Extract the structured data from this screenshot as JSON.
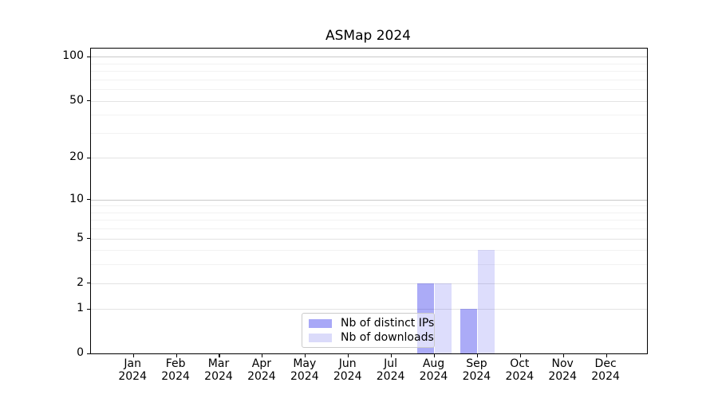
{
  "title": "ASMap 2024",
  "chart_data": {
    "type": "bar",
    "title": "ASMap 2024",
    "categories": [
      "Jan 2024",
      "Feb 2024",
      "Mar 2024",
      "Apr 2024",
      "May 2024",
      "Jun 2024",
      "Jul 2024",
      "Aug 2024",
      "Sep 2024",
      "Oct 2024",
      "Nov 2024",
      "Dec 2024"
    ],
    "series": [
      {
        "name": "Nb of distinct IPs",
        "color": "#a8a8f7",
        "fill": "rgba(13,13,232,0.345)",
        "values": [
          0,
          0,
          0,
          0,
          0,
          0,
          0,
          2,
          1,
          0,
          0,
          0
        ]
      },
      {
        "name": "Nb of downloads",
        "color": "#dbdbfa",
        "fill": "rgba(13,13,232,0.142)",
        "values": [
          0,
          0,
          0,
          0,
          0,
          0,
          0,
          2,
          4,
          0,
          0,
          0
        ]
      }
    ],
    "xlabel": "",
    "ylabel": "",
    "yscale": "log1p",
    "ylim": [
      0,
      114
    ],
    "y_major_ticks": [
      0,
      1,
      2,
      5,
      10,
      20,
      50,
      100
    ],
    "y_decade_ticks": [
      10,
      100
    ],
    "y_minor_ticks": [
      3,
      4,
      6,
      7,
      8,
      9,
      30,
      40,
      60,
      70,
      80,
      90
    ],
    "grid": true,
    "legend_position": "lower center"
  },
  "legend": {
    "items": [
      {
        "label": "Nb of distinct IPs",
        "color": "#a8a8f7"
      },
      {
        "label": "Nb of downloads",
        "color": "#dbdbfa"
      }
    ]
  }
}
